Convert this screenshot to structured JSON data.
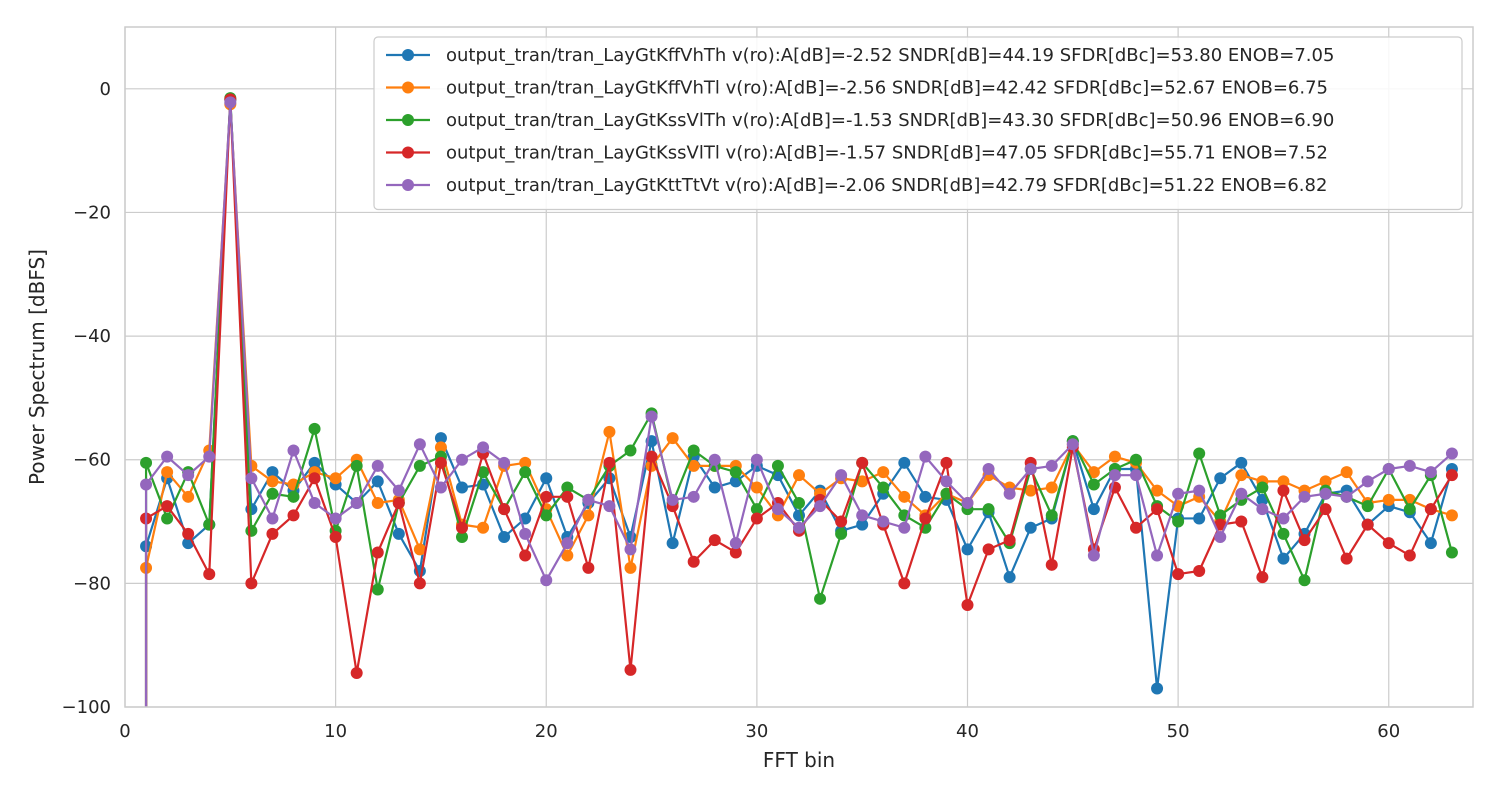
{
  "chart_data": {
    "type": "line",
    "xlabel": "FFT bin",
    "ylabel": "Power Spectrum [dBFS]",
    "xlim": [
      0,
      64
    ],
    "ylim": [
      -100,
      10
    ],
    "xticks": [
      0,
      10,
      20,
      30,
      40,
      50,
      60
    ],
    "yticks": [
      -100,
      -80,
      -60,
      -40,
      -20,
      0
    ],
    "grid": true,
    "legend_position": "top-right",
    "x": [
      1,
      2,
      3,
      4,
      5,
      6,
      7,
      8,
      9,
      10,
      11,
      12,
      13,
      14,
      15,
      16,
      17,
      18,
      19,
      20,
      21,
      22,
      23,
      24,
      25,
      26,
      27,
      28,
      29,
      30,
      31,
      32,
      33,
      34,
      35,
      36,
      37,
      38,
      39,
      40,
      41,
      42,
      43,
      44,
      45,
      46,
      47,
      48,
      49,
      50,
      51,
      52,
      53,
      54,
      55,
      56,
      57,
      58,
      59,
      60,
      61,
      62,
      63
    ],
    "series": [
      {
        "name": "output_tran/tran_LayGtKffVhTh v(ro):A[dB]=-2.52 SNDR[dB]=44.19 SFDR[dBc]=53.80 ENOB=7.05",
        "color": "#1f77b4",
        "values": [
          -74,
          -63,
          -73.5,
          -70.5,
          -1.8,
          -68,
          -62,
          -65,
          -60.5,
          -64,
          -67,
          -63.5,
          -72,
          -78,
          -56.5,
          -64.5,
          -64,
          -72.5,
          -69.5,
          -63,
          -72.5,
          -67,
          -63,
          -72.5,
          -57,
          -73.5,
          -59.5,
          -64.5,
          -63.5,
          -61,
          -62.5,
          -69,
          -65,
          -71.5,
          -70.5,
          -65.5,
          -60.5,
          -66,
          -66.5,
          -74.5,
          -68.5,
          -79,
          -71,
          -69.5,
          -57,
          -68,
          -61.5,
          -61.5,
          -97,
          -69.5,
          -69.5,
          -63,
          -60.5,
          -66.5,
          -76,
          -72,
          -65.5,
          -65,
          -70.5,
          -67.5,
          -68.5,
          -73.5,
          -61.5
        ]
      },
      {
        "name": "output_tran/tran_LayGtKffVhTl v(ro):A[dB]=-2.56 SNDR[dB]=42.42 SFDR[dBc]=52.67 ENOB=6.75",
        "color": "#ff7f0e",
        "values": [
          -77.5,
          -62,
          -66,
          -58.5,
          -2.5,
          -61,
          -63.5,
          -64,
          -62,
          -63,
          -60,
          -67,
          -66.5,
          -74.5,
          -58,
          -70.5,
          -71,
          -61,
          -60.5,
          -68,
          -75.5,
          -69,
          -55.5,
          -77.5,
          -61,
          -56.5,
          -61,
          -61,
          -61,
          -64.5,
          -69,
          -62.5,
          -65.5,
          -63,
          -63.5,
          -62,
          -66,
          -69,
          -65.5,
          -67,
          -62.5,
          -64.5,
          -65,
          -64.5,
          -57.5,
          -62,
          -59.5,
          -60.5,
          -65,
          -67.5,
          -66,
          -70,
          -62.5,
          -63.5,
          -63.5,
          -65,
          -63.5,
          -62,
          -67,
          -66.5,
          -66.5,
          -68,
          -69
        ]
      },
      {
        "name": "output_tran/tran_LayGtKssVlTh v(ro):A[dB]=-1.53 SNDR[dB]=43.30 SFDR[dBc]=50.96 ENOB=6.90",
        "color": "#2ca02c",
        "values": [
          -60.5,
          -69.5,
          -62,
          -70.5,
          -1.5,
          -71.5,
          -65.5,
          -66,
          -55,
          -71.5,
          -61,
          -81,
          -67,
          -61,
          -59.5,
          -72.5,
          -62,
          -68,
          -62,
          -69,
          -64.5,
          -66.5,
          -61,
          -58.5,
          -52.5,
          -67,
          -58.5,
          -61,
          -62,
          -68,
          -61,
          -67,
          -82.5,
          -72,
          -60.5,
          -64.5,
          -69,
          -71,
          -65.5,
          -68,
          -68,
          -73.5,
          -61.5,
          -69,
          -57,
          -64,
          -61.5,
          -60,
          -67.5,
          -70,
          -59,
          -69,
          -66.5,
          -64.5,
          -72,
          -79.5,
          -65,
          -66,
          -67.5,
          -61.5,
          -68,
          -62.5,
          -75
        ]
      },
      {
        "name": "output_tran/tran_LayGtKssVlTl v(ro):A[dB]=-1.57 SNDR[dB]=47.05 SFDR[dBc]=55.71 ENOB=7.52",
        "color": "#d62728",
        "values": [
          -69.5,
          -67.5,
          -72,
          -78.5,
          -1.7,
          -80,
          -72,
          -69,
          -63,
          -72.5,
          -94.5,
          -75,
          -67,
          -80,
          -60.5,
          -71,
          -59,
          -68,
          -75.5,
          -66,
          -66,
          -77.5,
          -60.5,
          -94,
          -59.5,
          -67.5,
          -76.5,
          -73,
          -75,
          -69.5,
          -67,
          -71.5,
          -66.5,
          -70,
          -60.5,
          -70.5,
          -80,
          -69.5,
          -60.5,
          -83.5,
          -74.5,
          -73,
          -60.5,
          -77,
          -58,
          -74.5,
          -64.5,
          -71,
          -68,
          -78.5,
          -78,
          -70.5,
          -70,
          -79,
          -65,
          -73,
          -68,
          -76,
          -70.5,
          -73.5,
          -75.5,
          -68,
          -62.5
        ]
      },
      {
        "name": "output_tran/tran_LayGtKttTtVt v(ro):A[dB]=-2.06 SNDR[dB]=42.79 SFDR[dBc]=51.22 ENOB=6.82",
        "color": "#9467bd",
        "values": [
          -64,
          -59.5,
          -62.5,
          -59.5,
          -2.2,
          -63,
          -69.5,
          -58.5,
          -67,
          -69.5,
          -67,
          -61,
          -65,
          -57.5,
          -64.5,
          -60,
          -58,
          -60.5,
          -72,
          -79.5,
          -73.5,
          -66.5,
          -67.5,
          -74.5,
          -53,
          -66.5,
          -66,
          -60,
          -73.5,
          -60,
          -68,
          -71,
          -67.5,
          -62.5,
          -69,
          -70,
          -71,
          -59.5,
          -63.5,
          -67,
          -61.5,
          -65.5,
          -61.5,
          -61,
          -57.5,
          -75.5,
          -62.5,
          -62.5,
          -75.5,
          -65.5,
          -65,
          -72.5,
          -65.5,
          -68,
          -69.5,
          -66,
          -65.5,
          -66,
          -63.5,
          -61.5,
          -61,
          -62,
          -59
        ]
      }
    ],
    "drop_to_bottom_at_bin1": -100
  }
}
